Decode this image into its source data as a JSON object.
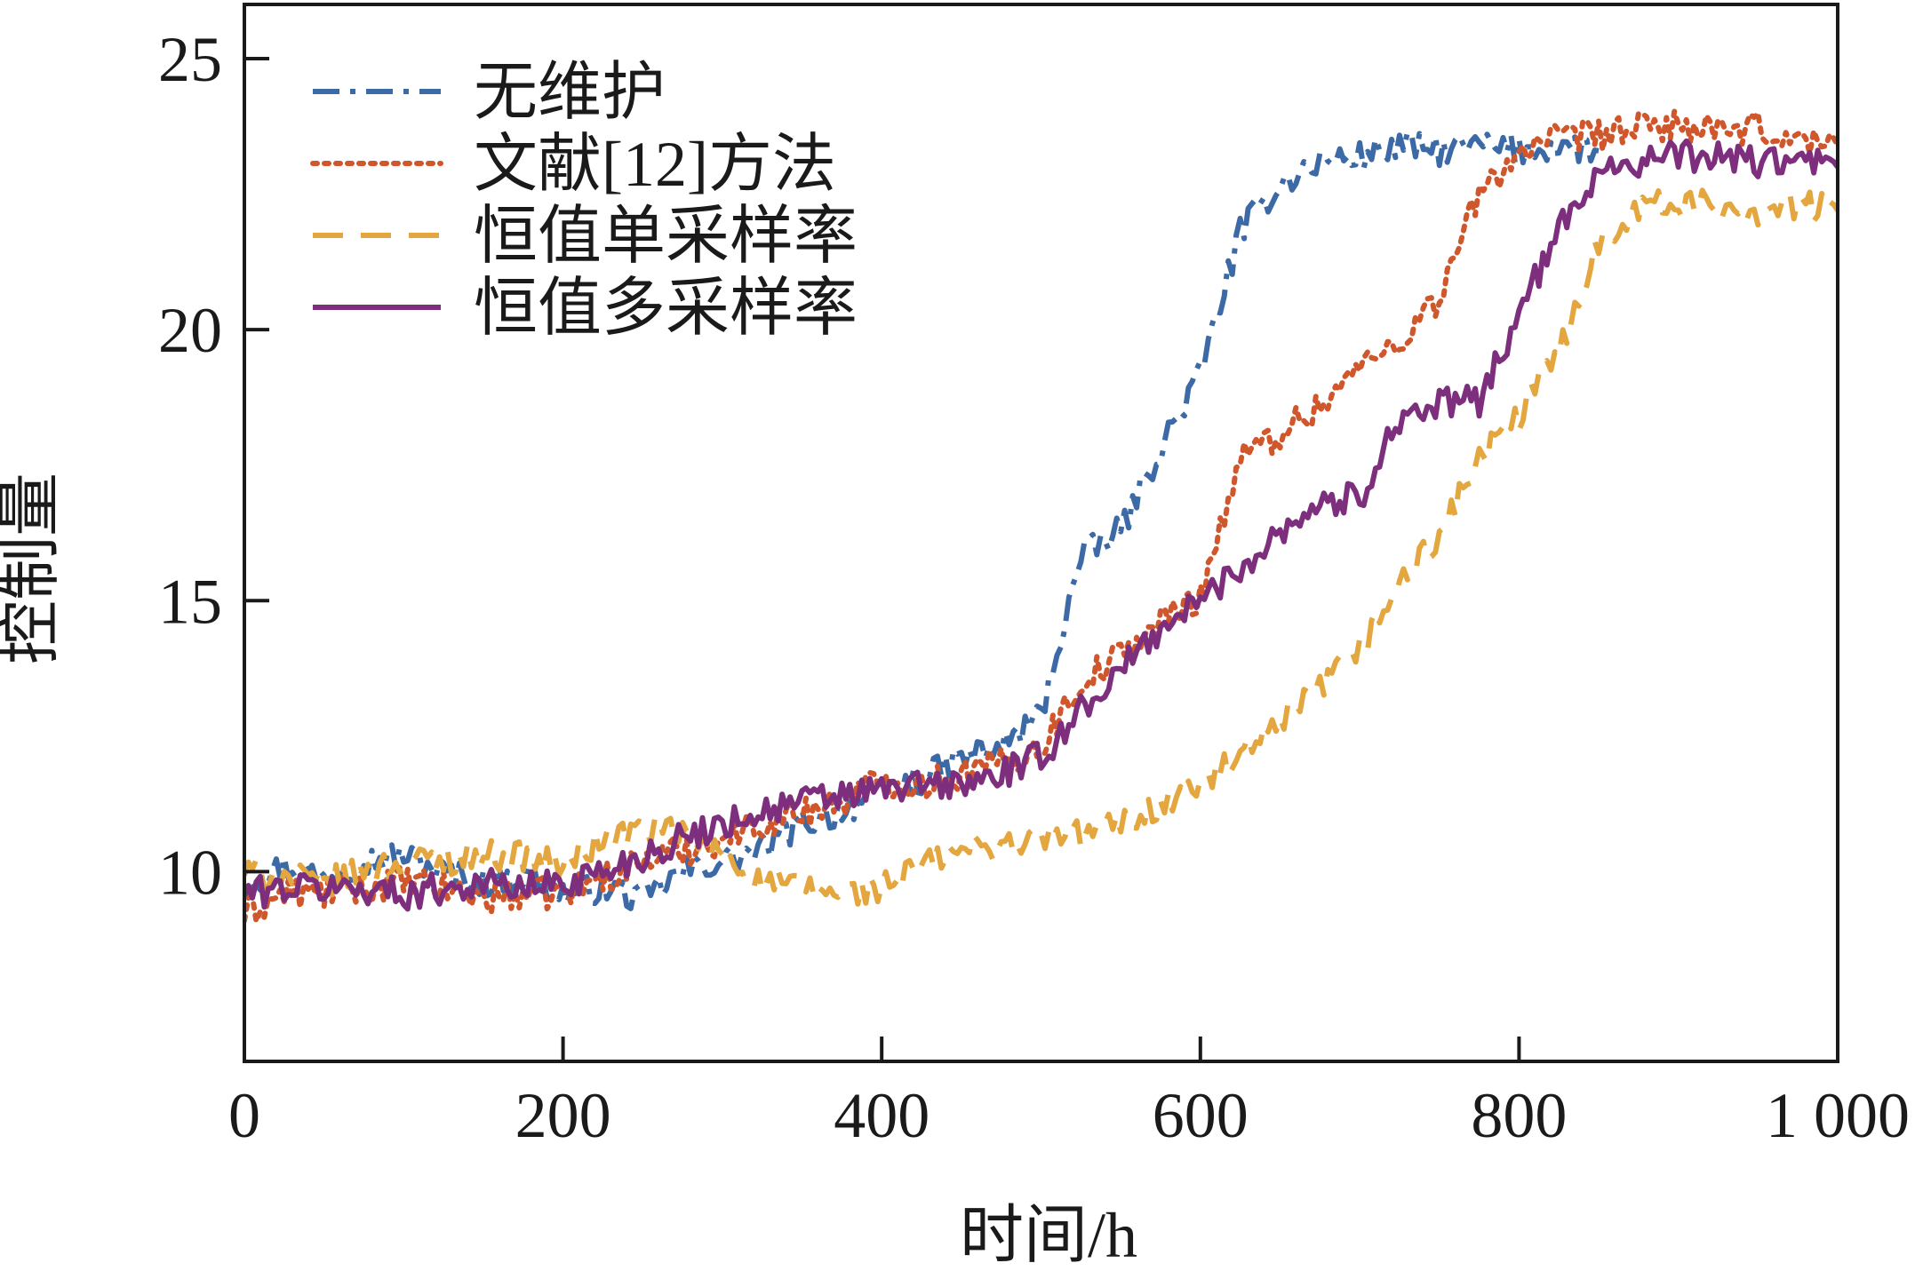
{
  "chart_data": {
    "type": "line",
    "title": "",
    "xlabel": "时间/h",
    "ylabel": "控制量",
    "xlim": [
      0,
      1000
    ],
    "ylim": [
      6.5,
      26
    ],
    "xticks": [
      0,
      200,
      400,
      600,
      800,
      1000
    ],
    "xtick_labels": [
      "0",
      "200",
      "400",
      "600",
      "800",
      "1 000"
    ],
    "yticks": [
      10,
      15,
      20,
      25
    ],
    "ytick_labels": [
      "10",
      "15",
      "20",
      "25"
    ],
    "grid": false,
    "legend_position": "top-left",
    "series": [
      {
        "name": "无维护",
        "color": "#3c6aa6",
        "dash": "dashdot",
        "x": [
          0,
          25,
          50,
          75,
          100,
          125,
          150,
          175,
          200,
          225,
          250,
          275,
          300,
          325,
          350,
          375,
          400,
          425,
          450,
          475,
          500,
          525,
          550,
          575,
          600,
          625,
          650,
          675,
          700,
          725,
          750,
          775,
          800,
          825,
          850
        ],
        "y": [
          9.8,
          10.1,
          9.9,
          10.2,
          10.3,
          10.0,
          9.8,
          9.9,
          9.6,
          9.7,
          9.5,
          10.0,
          10.2,
          10.4,
          10.9,
          11.1,
          11.5,
          11.7,
          12.1,
          12.3,
          12.9,
          15.8,
          16.3,
          17.8,
          19.2,
          21.8,
          22.7,
          23.1,
          23.2,
          23.4,
          23.3,
          23.4,
          23.3,
          23.4,
          23.3
        ]
      },
      {
        "name": "文献[12]方法",
        "color": "#d0562c",
        "dash": "dotted",
        "x": [
          0,
          25,
          50,
          75,
          100,
          125,
          150,
          175,
          200,
          225,
          250,
          275,
          300,
          325,
          350,
          375,
          400,
          425,
          450,
          475,
          500,
          525,
          550,
          575,
          600,
          625,
          650,
          675,
          700,
          725,
          750,
          775,
          800,
          825,
          850,
          875,
          900,
          925,
          950,
          975,
          1000
        ],
        "y": [
          9.2,
          9.6,
          9.6,
          9.7,
          9.8,
          9.7,
          9.5,
          9.6,
          9.6,
          9.9,
          10.2,
          10.4,
          10.6,
          10.9,
          11.1,
          11.3,
          11.7,
          11.6,
          11.8,
          12.0,
          12.3,
          13.5,
          14.0,
          14.6,
          15.1,
          17.6,
          18.1,
          18.6,
          19.3,
          19.8,
          20.6,
          22.5,
          23.3,
          23.5,
          23.6,
          23.7,
          23.8,
          23.6,
          23.7,
          23.5,
          23.4
        ]
      },
      {
        "name": "恒值单采样率",
        "color": "#e4a63e",
        "dash": "dashed",
        "x": [
          0,
          25,
          50,
          75,
          100,
          125,
          150,
          175,
          200,
          225,
          250,
          275,
          300,
          325,
          350,
          375,
          400,
          425,
          450,
          475,
          500,
          525,
          550,
          575,
          600,
          625,
          650,
          675,
          700,
          725,
          750,
          775,
          800,
          825,
          850,
          875,
          900,
          925,
          950,
          975,
          1000
        ],
        "y": [
          10.0,
          9.9,
          9.8,
          10.0,
          10.2,
          10.2,
          10.3,
          10.3,
          10.1,
          10.6,
          10.8,
          10.7,
          10.3,
          9.8,
          9.7,
          9.6,
          9.7,
          10.1,
          10.4,
          10.5,
          10.6,
          10.7,
          10.9,
          11.2,
          11.6,
          12.1,
          12.7,
          13.4,
          14.1,
          15.3,
          16.2,
          17.6,
          18.4,
          19.6,
          21.6,
          22.3,
          22.3,
          22.3,
          22.2,
          22.3,
          22.2
        ]
      },
      {
        "name": "恒值多采样率",
        "color": "#7d2f7d",
        "dash": "solid",
        "x": [
          0,
          25,
          50,
          75,
          100,
          125,
          150,
          175,
          200,
          225,
          250,
          275,
          300,
          325,
          350,
          375,
          400,
          425,
          450,
          475,
          500,
          525,
          550,
          575,
          600,
          625,
          650,
          675,
          700,
          725,
          750,
          775,
          800,
          825,
          850,
          875,
          900,
          925,
          950,
          975,
          1000
        ],
        "y": [
          9.6,
          9.7,
          9.7,
          9.7,
          9.6,
          9.7,
          9.8,
          9.7,
          9.8,
          10.0,
          10.3,
          10.6,
          10.9,
          11.1,
          11.3,
          11.4,
          11.5,
          11.6,
          11.6,
          11.8,
          12.1,
          13.0,
          13.7,
          14.5,
          15.0,
          15.6,
          16.3,
          16.8,
          16.9,
          18.4,
          18.6,
          18.7,
          20.3,
          21.8,
          23.0,
          23.1,
          23.2,
          23.2,
          23.1,
          23.1,
          23.0
        ]
      }
    ]
  }
}
